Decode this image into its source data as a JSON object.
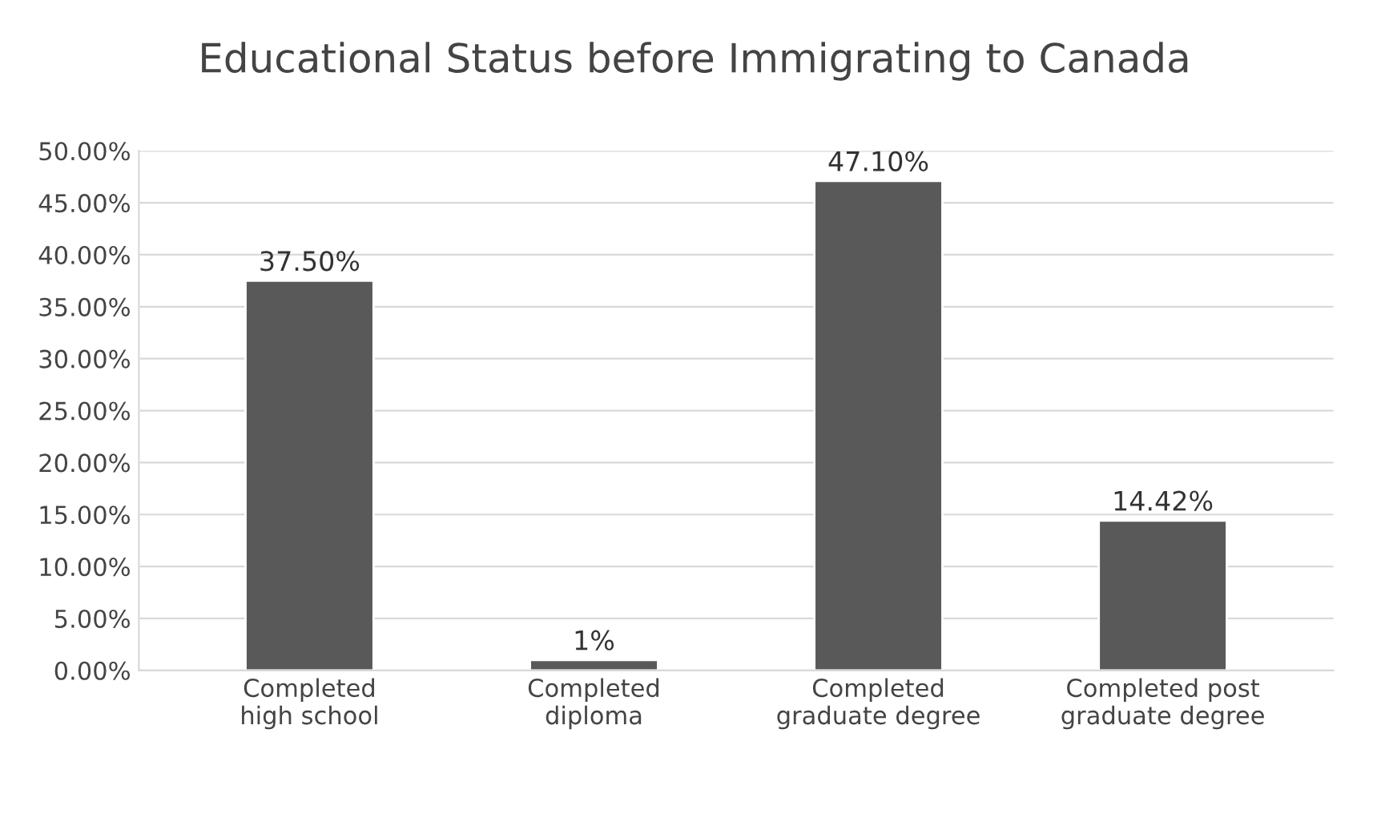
{
  "chart_data": {
    "type": "bar",
    "title": "Educational Status before Immigrating to Canada",
    "categories": [
      "Completed high school",
      "Completed diploma",
      "Completed graduate degree",
      "Completed post graduate degree"
    ],
    "values": [
      37.5,
      1,
      47.1,
      14.42
    ],
    "value_labels": [
      "37.50%",
      "1%",
      "47.10%",
      "14.42%"
    ],
    "color": "#595959",
    "ylim": [
      0,
      50
    ],
    "yticks": [
      {
        "value": 0,
        "label": "0.00%"
      },
      {
        "value": 5,
        "label": "5.00%"
      },
      {
        "value": 10,
        "label": "10.00%"
      },
      {
        "value": 15,
        "label": "15.00%"
      },
      {
        "value": 20,
        "label": "20.00%"
      },
      {
        "value": 25,
        "label": "25.00%"
      },
      {
        "value": 30,
        "label": "30.00%"
      },
      {
        "value": 35,
        "label": "35.00%"
      },
      {
        "value": 40,
        "label": "40.00%"
      },
      {
        "value": 45,
        "label": "45.00%"
      },
      {
        "value": 50,
        "label": "50.00%"
      }
    ],
    "grid": "y"
  }
}
